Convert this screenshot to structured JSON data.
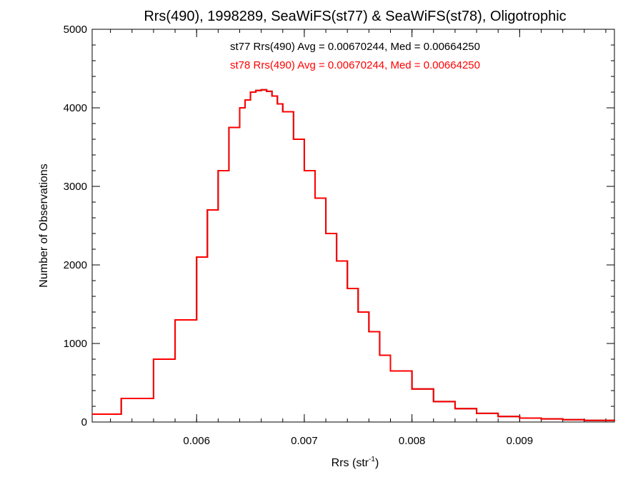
{
  "chart_data": {
    "type": "line",
    "title": "Rrs(490), 1998289, SeaWiFS(st77) & SeaWiFS(st78), Oligotrophic",
    "xlabel_main": "Rrs (str",
    "xlabel_sup": "-1",
    "xlabel_close": ")",
    "ylabel": "Number of Observations",
    "xlim": [
      0.00503,
      0.00988
    ],
    "ylim": [
      0,
      5000
    ],
    "xticks": [
      {
        "value": 0.006,
        "label": "0.006"
      },
      {
        "value": 0.007,
        "label": "0.007"
      },
      {
        "value": 0.008,
        "label": "0.008"
      },
      {
        "value": 0.009,
        "label": "0.009"
      }
    ],
    "yticks": [
      {
        "value": 0,
        "label": "0"
      },
      {
        "value": 1000,
        "label": "1000"
      },
      {
        "value": 2000,
        "label": "2000"
      },
      {
        "value": 3000,
        "label": "3000"
      },
      {
        "value": 4000,
        "label": "4000"
      },
      {
        "value": 5000,
        "label": "5000"
      }
    ],
    "x_minor_step": 0.0002,
    "y_minor_step": 200,
    "grid": false,
    "annotations": [
      {
        "text": "st77 Rrs(490) Avg = 0.00670244, Med = 0.00664250",
        "color": "#000000"
      },
      {
        "text": "st78 Rrs(490) Avg = 0.00670244, Med = 0.00664250",
        "color": "#ff0000"
      }
    ],
    "series": [
      {
        "color": "#ff0000",
        "style": "histogram-step",
        "x": [
          0.00503,
          0.0053,
          0.0056,
          0.0058,
          0.006,
          0.0061,
          0.0062,
          0.0063,
          0.0064,
          0.00645,
          0.0065,
          0.00655,
          0.0066,
          0.00665,
          0.0067,
          0.00675,
          0.0068,
          0.0069,
          0.007,
          0.0071,
          0.0072,
          0.0073,
          0.0074,
          0.0075,
          0.0076,
          0.0077,
          0.0078,
          0.008,
          0.0082,
          0.0084,
          0.0086,
          0.0088,
          0.009,
          0.0092,
          0.0094,
          0.0096,
          0.00988
        ],
        "values": [
          100,
          300,
          800,
          1300,
          2100,
          2700,
          3200,
          3750,
          4000,
          4100,
          4200,
          4220,
          4230,
          4210,
          4150,
          4050,
          3950,
          3600,
          3200,
          2850,
          2400,
          2050,
          1700,
          1400,
          1150,
          850,
          650,
          420,
          260,
          170,
          110,
          70,
          50,
          40,
          30,
          20,
          10
        ]
      },
      {
        "color": "#000000",
        "style": "histogram-step",
        "x": [
          0.00503,
          0.0053,
          0.0056,
          0.0058,
          0.006,
          0.0061,
          0.0062,
          0.0063,
          0.0064,
          0.00645,
          0.0065,
          0.00655,
          0.0066,
          0.00665,
          0.0067,
          0.00675,
          0.0068,
          0.0069,
          0.007,
          0.0071,
          0.0072,
          0.0073,
          0.0074,
          0.0075,
          0.0076,
          0.0077,
          0.0078,
          0.008,
          0.0082,
          0.0084,
          0.0086,
          0.0088,
          0.009,
          0.0092,
          0.0094,
          0.0096,
          0.00988
        ],
        "values": [
          100,
          300,
          800,
          1300,
          2100,
          2700,
          3200,
          3750,
          4000,
          4100,
          4200,
          4220,
          4230,
          4210,
          4150,
          4050,
          3950,
          3600,
          3200,
          2850,
          2400,
          2050,
          1700,
          1400,
          1150,
          850,
          650,
          420,
          260,
          170,
          110,
          70,
          50,
          40,
          30,
          20,
          10
        ]
      }
    ]
  }
}
